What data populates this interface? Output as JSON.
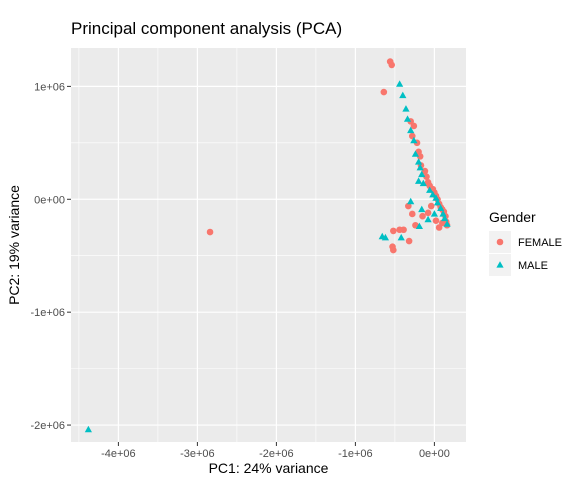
{
  "chart_data": {
    "type": "scatter",
    "title": "Principal component analysis (PCA)",
    "xlabel": "PC1: 24% variance",
    "ylabel": "PC2: 19% variance",
    "xlim": [
      -4600000,
      400000
    ],
    "ylim": [
      -2150000,
      1340000
    ],
    "x_ticks": [
      {
        "value": -4000000,
        "label": "-4e+06"
      },
      {
        "value": -3000000,
        "label": "-3e+06"
      },
      {
        "value": -2000000,
        "label": "-2e+06"
      },
      {
        "value": -1000000,
        "label": "-1e+06"
      },
      {
        "value": 0,
        "label": "0e+00"
      }
    ],
    "y_ticks": [
      {
        "value": 1000000,
        "label": "1e+06"
      },
      {
        "value": 0,
        "label": "0e+00"
      },
      {
        "value": -1000000,
        "label": "-1e+06"
      },
      {
        "value": -2000000,
        "label": "-2e+06"
      }
    ],
    "legend": {
      "title": "Gender",
      "position": "right"
    },
    "series": [
      {
        "name": "FEMALE",
        "shape": "circle",
        "color": "#F8766D",
        "points": [
          [
            -560000,
            1220000
          ],
          [
            -540000,
            1190000
          ],
          [
            -640000,
            950000
          ],
          [
            -300000,
            690000
          ],
          [
            -260000,
            650000
          ],
          [
            -280000,
            560000
          ],
          [
            -220000,
            500000
          ],
          [
            -200000,
            420000
          ],
          [
            -180000,
            380000
          ],
          [
            -170000,
            300000
          ],
          [
            -120000,
            250000
          ],
          [
            -100000,
            200000
          ],
          [
            -80000,
            150000
          ],
          [
            -60000,
            120000
          ],
          [
            -20000,
            90000
          ],
          [
            0,
            60000
          ],
          [
            20000,
            30000
          ],
          [
            40000,
            0
          ],
          [
            60000,
            -40000
          ],
          [
            80000,
            -70000
          ],
          [
            100000,
            -90000
          ],
          [
            120000,
            -110000
          ],
          [
            140000,
            -150000
          ],
          [
            150000,
            -200000
          ],
          [
            160000,
            -230000
          ],
          [
            100000,
            -210000
          ],
          [
            60000,
            -250000
          ],
          [
            20000,
            -190000
          ],
          [
            -40000,
            -60000
          ],
          [
            -80000,
            -120000
          ],
          [
            -150000,
            -150000
          ],
          [
            -240000,
            -230000
          ],
          [
            -280000,
            -130000
          ],
          [
            -330000,
            -60000
          ],
          [
            -390000,
            -270000
          ],
          [
            -440000,
            -270000
          ],
          [
            -520000,
            -280000
          ],
          [
            -530000,
            -420000
          ],
          [
            -520000,
            -450000
          ],
          [
            -320000,
            -370000
          ],
          [
            -2840000,
            -290000
          ]
        ]
      },
      {
        "name": "MALE",
        "shape": "triangle",
        "color": "#00BFC4",
        "points": [
          [
            -440000,
            1020000
          ],
          [
            -400000,
            920000
          ],
          [
            -360000,
            800000
          ],
          [
            -340000,
            710000
          ],
          [
            -300000,
            610000
          ],
          [
            -260000,
            520000
          ],
          [
            -240000,
            400000
          ],
          [
            -200000,
            330000
          ],
          [
            -180000,
            280000
          ],
          [
            -160000,
            220000
          ],
          [
            -200000,
            160000
          ],
          [
            -140000,
            140000
          ],
          [
            -60000,
            80000
          ],
          [
            -20000,
            40000
          ],
          [
            20000,
            10000
          ],
          [
            40000,
            -30000
          ],
          [
            80000,
            -80000
          ],
          [
            110000,
            -130000
          ],
          [
            130000,
            -170000
          ],
          [
            160000,
            -220000
          ],
          [
            0,
            -130000
          ],
          [
            -80000,
            -180000
          ],
          [
            -190000,
            -240000
          ],
          [
            -300000,
            -20000
          ],
          [
            -160000,
            -90000
          ],
          [
            -620000,
            -340000
          ],
          [
            -660000,
            -330000
          ],
          [
            -420000,
            -340000
          ],
          [
            -4380000,
            -2040000
          ]
        ]
      }
    ]
  }
}
